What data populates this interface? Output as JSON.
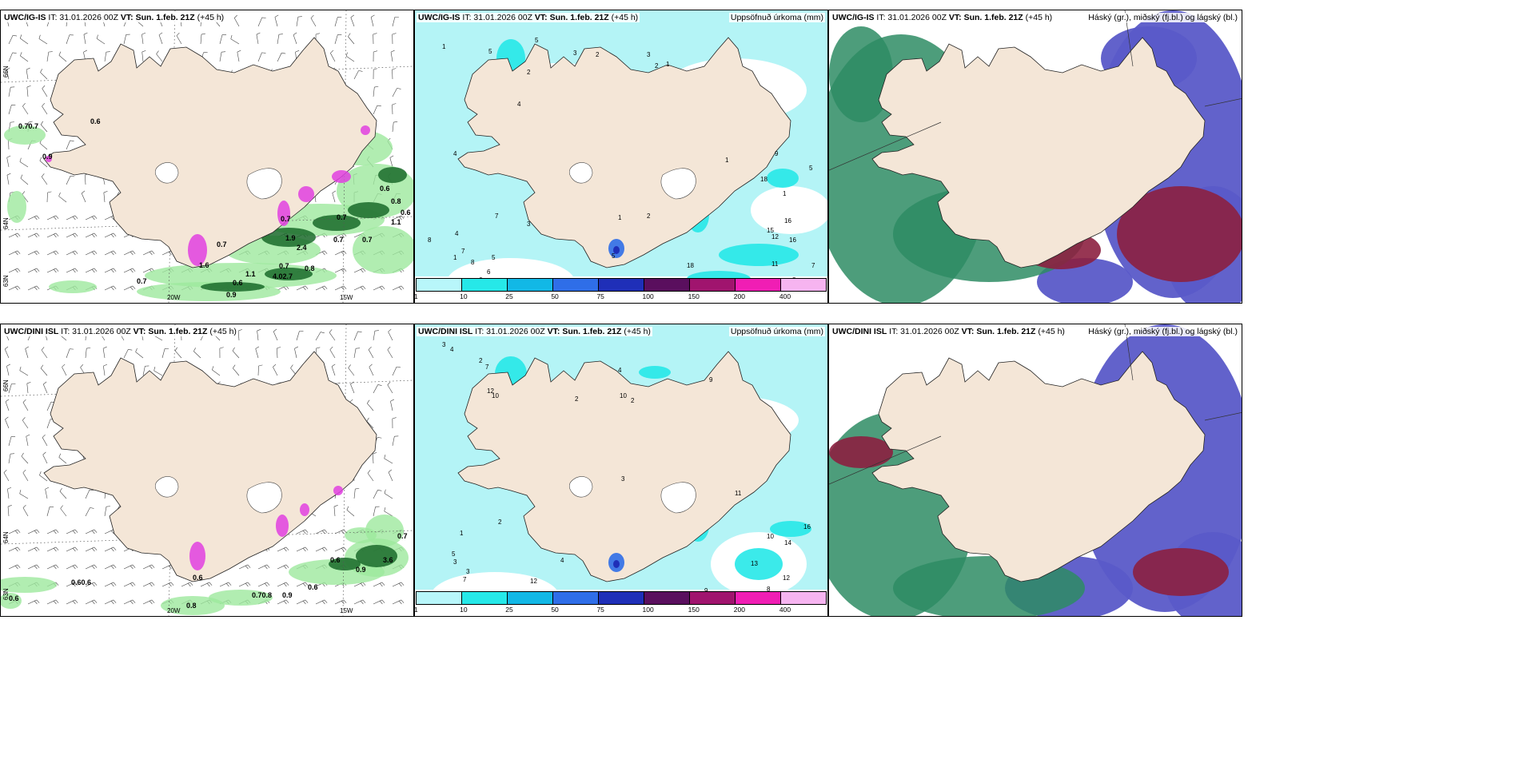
{
  "panels": [
    {
      "id": "p1",
      "row": "top",
      "model": "UWC/IG-IS",
      "it": "IT: 31.01.2026 00Z",
      "vt_label": "VT:",
      "vt": "Sun. 1.feb. 21Z",
      "lead": "(+45 h)",
      "right": ""
    },
    {
      "id": "p2",
      "row": "top",
      "model": "UWC/IG-IS",
      "it": "IT: 31.01.2026 00Z",
      "vt_label": "VT:",
      "vt": "Sun. 1.feb. 21Z",
      "lead": "(+45 h)",
      "right": "Uppsöfnuð úrkoma (mm)"
    },
    {
      "id": "p3",
      "row": "top",
      "model": "UWC/IG-IS",
      "it": "IT: 31.01.2026 00Z",
      "vt_label": "VT:",
      "vt": "Sun. 1.feb. 21Z",
      "lead": "(+45 h)",
      "right": "Háský (gr.), miðský (fj.bl.) og lágský (bl.)"
    },
    {
      "id": "p4",
      "row": "bottom",
      "model": "UWC/DINI ISL",
      "it": "IT: 31.01.2026 00Z",
      "vt_label": "VT:",
      "vt": "Sun. 1.feb. 21Z",
      "lead": "(+45 h)",
      "right": ""
    },
    {
      "id": "p5",
      "row": "bottom",
      "model": "UWC/DINI ISL",
      "it": "IT: 31.01.2026 00Z",
      "vt_label": "VT:",
      "vt": "Sun. 1.feb. 21Z",
      "lead": "(+45 h)",
      "right": "Uppsöfnuð úrkoma (mm)"
    },
    {
      "id": "p6",
      "row": "bottom",
      "model": "UWC/DINI ISL",
      "it": "IT: 31.01.2026 00Z",
      "vt_label": "VT:",
      "vt": "Sun. 1.feb. 21Z",
      "lead": "(+45 h)",
      "right": "Háský (gr.), miðský (fj.bl.) og lágský (bl.)"
    }
  ],
  "axis_labels": {
    "lat_66": "66N",
    "lat_64": "64N",
    "lat_63": "63N",
    "lon_20": "20W",
    "lon_15": "15W"
  },
  "colorbar": {
    "ticks": [
      "1",
      "10",
      "25",
      "50",
      "75",
      "100",
      "150",
      "200",
      "400"
    ],
    "colors": [
      "#b8f6fa",
      "#26e8e8",
      "#12b8e6",
      "#2f6ee8",
      "#1f2fb8",
      "#5a0f5e",
      "#a0146e",
      "#f01eb4",
      "#f6b4f0"
    ]
  },
  "wind_labels_top": [
    "0.70.7",
    "0.6",
    "0.9",
    "0.7",
    "0.7",
    "0.7",
    "0.6",
    "0.8",
    "0.6",
    "1.1",
    "0.7",
    "0.7",
    "0.8",
    "0.6",
    "2.4",
    "4.02.7",
    "0.7",
    "1.1",
    "0.9",
    "1.9",
    "0.7",
    "1.6"
  ],
  "wind_labels_bottom": [
    "0.60.6",
    "0.6",
    "0.8",
    "0.70.8",
    "0.9",
    "0.6",
    "0.6",
    "0.9",
    "3.6",
    "0.7",
    "0.6"
  ],
  "precip_labels_top": [
    "1",
    "4",
    "5",
    "3",
    "2",
    "8",
    "3",
    "1",
    "4",
    "2",
    "1",
    "5",
    "6",
    "8",
    "7",
    "6",
    "5",
    "7",
    "1",
    "3",
    "4",
    "2",
    "5",
    "1",
    "9",
    "18",
    "15",
    "12",
    "16",
    "11",
    "18",
    "16",
    "12",
    "7",
    "8",
    "5",
    "1",
    "2"
  ],
  "precip_labels_bottom": [
    "3",
    "4",
    "7",
    "12",
    "10",
    "2",
    "2",
    "10",
    "4",
    "2",
    "3",
    "3",
    "9",
    "1",
    "2",
    "4",
    "5",
    "7",
    "6",
    "12",
    "10",
    "7",
    "3",
    "11",
    "10",
    "13",
    "14",
    "16",
    "8",
    "12",
    "9",
    "4"
  ],
  "colors": {
    "land": "#f4e6d7",
    "ice": "#ffffff",
    "sea": "#ffffff",
    "precip_sea": "#b4f4f6",
    "cloud_high": "#2e8c64",
    "cloud_mid": "#8c2040",
    "cloud_low": "#5a5ac8"
  }
}
